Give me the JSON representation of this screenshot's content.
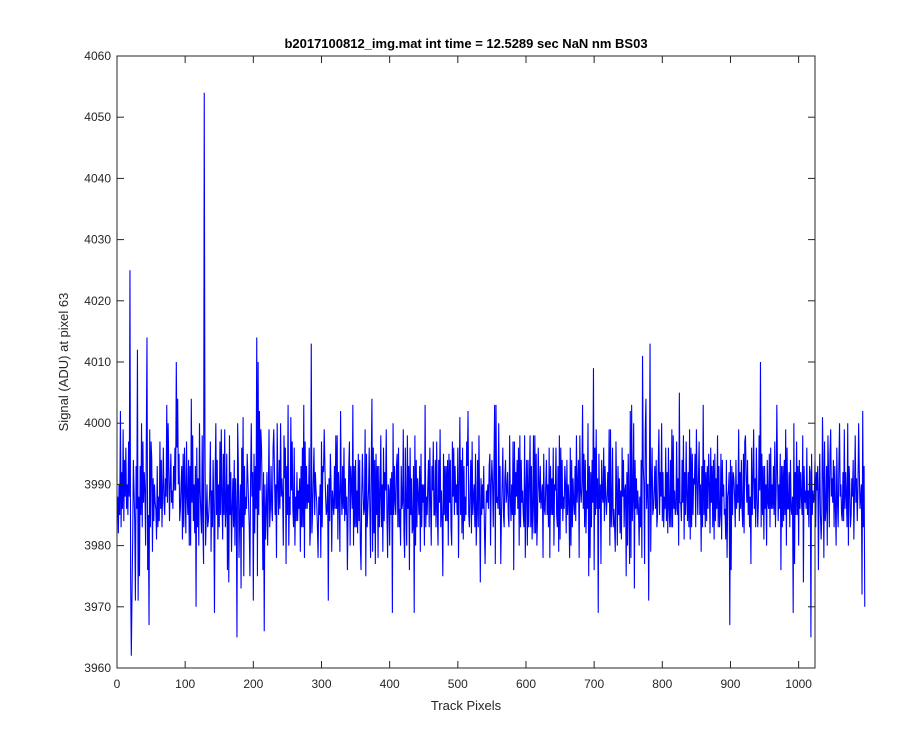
{
  "figure": {
    "background": "#ffffff"
  },
  "chart_data": {
    "type": "line",
    "title": "b2017100812_img.mat int time = 12.5289 sec  NaN nm BS03",
    "xlabel": "Track Pixels",
    "ylabel": "Signal (ADU) at pixel 63",
    "xlim": [
      0,
      1024
    ],
    "ylim": [
      3960,
      4060
    ],
    "xticks": [
      0,
      100,
      200,
      300,
      400,
      500,
      600,
      700,
      800,
      900,
      1000
    ],
    "yticks": [
      3960,
      3970,
      3980,
      3990,
      4000,
      4010,
      4020,
      4030,
      4040,
      4050,
      4060
    ],
    "xtick_labels": [
      "0",
      "100",
      "200",
      "300",
      "400",
      "500",
      "600",
      "700",
      "800",
      "900",
      "1000"
    ],
    "ytick_labels": [
      "3960",
      "3970",
      "3980",
      "3990",
      "4000",
      "4010",
      "4020",
      "4030",
      "4040",
      "4050",
      "4060"
    ],
    "grid": false,
    "box": true,
    "series": [
      {
        "color": "#0000ff",
        "x_start": 1,
        "x_step": 1,
        "values": [
          3988,
          3982,
          3990,
          3985,
          4002,
          3983,
          3992,
          3986,
          3999,
          3984,
          3994,
          3988,
          3996,
          3986,
          3990,
          3985,
          3997,
          3988,
          4025,
          3975,
          3962,
          3972,
          3981,
          3994,
          3989,
          3984,
          3971,
          3993,
          3986,
          4012,
          3971,
          3988,
          3975,
          3993,
          3985,
          4000,
          3983,
          3997,
          3987,
          3992,
          3989,
          3980,
          3997,
          4014,
          3976,
          3985,
          3967,
          3999,
          3983,
          3997,
          3994,
          3979,
          3991,
          3984,
          3990,
          3987,
          3986,
          3981,
          3993,
          3983,
          3988,
          3984,
          3997,
          3986,
          3994,
          3983,
          3989,
          3996,
          3987,
          3985,
          3991,
          3988,
          4003,
          3987,
          4000,
          3993,
          3984,
          3990,
          3995,
          3987,
          3989,
          3986,
          3993,
          3989,
          3996,
          3989,
          4010,
          3996,
          4004,
          3990,
          3995,
          3984,
          3986,
          3990,
          3993,
          3981,
          3995,
          3983,
          3996,
          3989,
          3982,
          3997,
          3988,
          3985,
          3994,
          3980,
          3993,
          3980,
          4004,
          3987,
          3998,
          3984,
          3990,
          3982,
          3993,
          3970,
          3996,
          3983,
          3991,
          3980,
          4000,
          3989,
          3985,
          3982,
          3998,
          3983,
          3977,
          4054,
          3998,
          3980,
          3985,
          3990,
          3983,
          3984,
          3986,
          3989,
          3997,
          3979,
          3989,
          3983,
          3994,
          3986,
          3969,
          3992,
          4000,
          3985,
          3994,
          3981,
          3990,
          3983,
          3997,
          3985,
          3999,
          3988,
          3981,
          3995,
          3985,
          3999,
          3983,
          3986,
          3995,
          3976,
          3990,
          3974,
          3998,
          3985,
          3992,
          3979,
          3986,
          3991,
          3983,
          3994,
          3980,
          3991,
          3986,
          3965,
          4000,
          3993,
          3978,
          3985,
          3990,
          3973,
          3996,
          3983,
          4001,
          3975,
          3993,
          3985,
          3988,
          3986,
          3995,
          3991,
          3987,
          3983,
          3975,
          3991,
          4000,
          3988,
          3992,
          3971,
          3995,
          3982,
          3993,
          3986,
          4014,
          3975,
          4010,
          3985,
          4002,
          3989,
          3999,
          3996,
          3988,
          3976,
          3992,
          3966,
          3990,
          3981,
          3986,
          3992,
          3980,
          3988,
          3999,
          3983,
          3986,
          3993,
          3986,
          3984,
          3996,
          3999,
          3992,
          3985,
          3990,
          3978,
          4000,
          3990,
          3985,
          3994,
          3986,
          4000,
          3988,
          3991,
          3988,
          3980,
          3998,
          3991,
          3996,
          3977,
          3993,
          3985,
          4003,
          3980,
          3988,
          3985,
          4001,
          3989,
          3997,
          3986,
          3983,
          3996,
          3980,
          3988,
          3984,
          3992,
          3984,
          3989,
          3986,
          3991,
          3979,
          3993,
          3983,
          3996,
          3983,
          4003,
          3978,
          3997,
          3986,
          3993,
          3986,
          3990,
          3987,
          3996,
          3980,
          3983,
          4013,
          3982,
          3986,
          3991,
          3996,
          3985,
          3992,
          3989,
          3987,
          3983,
          3978,
          3988,
          3985,
          3990,
          3978,
          3997,
          3983,
          3993,
          3992,
          3999,
          3993,
          3988,
          3985,
          3986,
          3990,
          3971,
          3991,
          3984,
          3995,
          3990,
          3979,
          3989,
          3987,
          3985,
          3993,
          3986,
          3998,
          3986,
          3998,
          3981,
          3992,
          3988,
          3979,
          4002,
          3989,
          3985,
          3993,
          3986,
          3996,
          3984,
          3991,
          3985,
          3988,
          3976,
          3985,
          3993,
          3997,
          3980,
          3993,
          3990,
          3986,
          4003,
          3980,
          3993,
          3983,
          3994,
          3983,
          3989,
          3982,
          3995,
          3984,
          3994,
          3980,
          3976,
          3988,
          3995,
          3989,
          3985,
          3986,
          3999,
          3975,
          3995,
          3983,
          3986,
          3989,
          3996,
          3985,
          3978,
          3993,
          4004,
          3979,
          3996,
          3982,
          3994,
          3977,
          3995,
          3985,
          3993,
          3978,
          3993,
          3983,
          3988,
          3998,
          3983,
          3990,
          3979,
          3996,
          3984,
          3992,
          3989,
          3999,
          3985,
          3978,
          3990,
          3989,
          3980,
          3991,
          3985,
          3992,
          3969,
          4000,
          3985,
          3993,
          3987,
          3985,
          3993,
          3995,
          3983,
          3996,
          3983,
          3986,
          3980,
          3993,
          3986,
          3987,
          3999,
          3982,
          3978,
          3996,
          3987,
          3980,
          3998,
          3986,
          3993,
          3976,
          3996,
          3985,
          3991,
          3982,
          3983,
          3993,
          3969,
          3998,
          3980,
          3994,
          3983,
          3991,
          3988,
          3985,
          3993,
          3979,
          3995,
          3983,
          3990,
          3987,
          3990,
          3980,
          4003,
          3983,
          3988,
          3985,
          3990,
          3994,
          3983,
          3996,
          3987,
          3980,
          3993,
          3989,
          3997,
          3985,
          3985,
          3994,
          3983,
          3997,
          3985,
          3980,
          3994,
          3987,
          3999,
          3983,
          3989,
          3984,
          3975,
          3995,
          3985,
          3993,
          3984,
          3993,
          3984,
          3994,
          3980,
          3995,
          3987,
          3994,
          3983,
          3980,
          3997,
          3988,
          3996,
          3985,
          3993,
          3987,
          3990,
          3985,
          3996,
          3978,
          3990,
          4001,
          3985,
          3994,
          3982,
          3996,
          3981,
          3993,
          3984,
          3988,
          3985,
          3997,
          3993,
          4002,
          3985,
          3983,
          3989,
          3994,
          3982,
          3997,
          3985,
          3988,
          3990,
          3983,
          3995,
          3980,
          3985,
          3994,
          3983,
          3998,
          3987,
          3974,
          3991,
          3985,
          3990,
          3986,
          3993,
          3983,
          3977,
          3985,
          3989,
          3987,
          3990,
          3986,
          3993,
          3995,
          3980,
          3990,
          3994,
          3990,
          3983,
          3993,
          4003,
          3977,
          4003,
          3987,
          3988,
          3986,
          4000,
          3985,
          3993,
          3977,
          3985,
          3990,
          3996,
          3985,
          3983,
          3991,
          3994,
          3987,
          3989,
          3992,
          3985,
          3983,
          3998,
          3988,
          3984,
          3990,
          3985,
          3997,
          3976,
          3997,
          3985,
          3992,
          3988,
          3994,
          3986,
          3996,
          3980,
          3998,
          3983,
          3994,
          3987,
          3989,
          3985,
          3983,
          3998,
          3978,
          3989,
          3994,
          3980,
          3994,
          3983,
          3990,
          3998,
          3983,
          3993,
          3981,
          3986,
          3998,
          3982,
          3998,
          3982,
          3995,
          3980,
          3985,
          3996,
          3990,
          3987,
          3993,
          3986,
          3988,
          3990,
          3978,
          3995,
          3986,
          3985,
          3990,
          3994,
          3985,
          3990,
          3983,
          3996,
          3978,
          3993,
          3985,
          3991,
          3985,
          3996,
          3980,
          3990,
          3989,
          3996,
          3985,
          3983,
          3993,
          3979,
          3998,
          3981,
          3996,
          3986,
          3994,
          3984,
          3988,
          3986,
          3993,
          3990,
          3982,
          3994,
          3985,
          3990,
          3987,
          3978,
          3996,
          3980,
          3994,
          3983,
          3991,
          3987,
          3985,
          3993,
          3984,
          3998,
          3987,
          3990,
          3994,
          3978,
          3998,
          3989,
          3987,
          3990,
          4003,
          3986,
          3995,
          3983,
          3994,
          3982,
          3989,
          3986,
          4000,
          3975,
          3993,
          3978,
          3992,
          3983,
          3994,
          3987,
          4009,
          3976,
          3996,
          3985,
          3999,
          3986,
          3991,
          3969,
          3995,
          3986,
          3990,
          3977,
          3994,
          3988,
          3987,
          3996,
          3984,
          3993,
          3988,
          3985,
          3988,
          3992,
          3987,
          3999,
          3980,
          3999,
          3983,
          3986,
          3996,
          3983,
          3986,
          3983,
          3979,
          3997,
          3989,
          3980,
          3993,
          3985,
          3991,
          3982,
          3989,
          3981,
          3996,
          3988,
          3994,
          3983,
          3989,
          3990,
          3975,
          3992,
          3980,
          3995,
          3988,
          3977,
          4002,
          3978,
          4003,
          3984,
          3988,
          4000,
          3973,
          3994,
          3986,
          3991,
          3985,
          3989,
          3986,
          3980,
          3988,
          3983,
          3994,
          3978,
          4011,
          3993,
          3990,
          3977,
          3999,
          4004,
          3986,
          3990,
          3990,
          3971,
          3989,
          4013,
          3979,
          3990,
          3996,
          3985,
          3986,
          3989,
          3993,
          3986,
          3994,
          3983,
          3985,
          3993,
          3999,
          3985,
          3992,
          3988,
          4000,
          3984,
          3992,
          3983,
          3988,
          3986,
          3996,
          3984,
          3992,
          3982,
          3996,
          3986,
          3983,
          3994,
          3983,
          3999,
          3983,
          3998,
          3986,
          3989,
          3985,
          3986,
          3997,
          3985,
          3991,
          3980,
          4005,
          3987,
          3987,
          3984,
          3994,
          3987,
          3998,
          3981,
          3992,
          3985,
          3997,
          3988,
          3984,
          3992,
          3983,
          3999,
          3981,
          3996,
          3983,
          3995,
          3985,
          3991,
          3990,
          3995,
          3983,
          3999,
          3991,
          3985,
          3991,
          3997,
          3985,
          3990,
          3979,
          3993,
          3983,
          4003,
          3985,
          3994,
          3983,
          3992,
          3984,
          3993,
          3986,
          3995,
          3990,
          3982,
          3996,
          3987,
          3993,
          3983,
          3994,
          3981,
          3995,
          3984,
          3991,
          3986,
          3998,
          3983,
          3993,
          3983,
          3985,
          3995,
          3981,
          3994,
          3988,
          3990,
          3985,
          3986,
          3981,
          3994,
          3978,
          3988,
          3989,
          3992,
          3967,
          3994,
          3976,
          3993,
          3985,
          3992,
          3991,
          3988,
          3983,
          3994,
          3986,
          3990,
          3987,
          3999,
          3984,
          3992,
          3986,
          3994,
          3986,
          3983,
          3995,
          3982,
          3997,
          3998,
          3991,
          3987,
          3994,
          3985,
          3990,
          3983,
          3988,
          3977,
          3996,
          3985,
          3991,
          3999,
          3986,
          3991,
          3983,
          3996,
          3988,
          3983,
          3987,
          3998,
          3989,
          4010,
          3983,
          3995,
          3985,
          3993,
          3981,
          3993,
          3986,
          3990,
          3980,
          3994,
          3987,
          3986,
          3995,
          3983,
          3996,
          3986,
          3990,
          3986,
          3993,
          3985,
          3997,
          3983,
          3989,
          4003,
          3992,
          3984,
          3990,
          3986,
          3995,
          3976,
          3993,
          3983,
          3993,
          3984,
          3994,
          3985,
          3999,
          3980,
          3996,
          3986,
          3986,
          3992,
          3983,
          3994,
          3986,
          3985,
          3988,
          3969,
          4000,
          3977,
          3992,
          3985,
          3997,
          3985,
          3993,
          3980,
          3994,
          3986,
          3992,
          3988,
          3985,
          3998,
          3974,
          3993,
          3987,
          3989,
          3986,
          3996,
          3985,
          3989,
          3983,
          3993,
          3992,
          3965,
          3995,
          3985,
          3989,
          3987,
          3988,
          3994,
          3983,
          3992,
          3989,
          3993,
          3976,
          3989,
          3995,
          3985,
          3981,
          3985,
          4001,
          3992,
          3978,
          3997,
          3984,
          3986,
          3993,
          3980,
          3998,
          3991,
          3983,
          3995,
          3999,
          3988,
          3991,
          3987,
          3994,
          3983,
          3993,
          3986,
          3980,
          3996,
          3987,
          3983,
          3993,
          4000,
          3988,
          3990,
          3985,
          3984,
          3992,
          3984,
          3999,
          3986,
          3992,
          3988,
          3983,
          4000,
          3980,
          3993,
          3990,
          3983,
          3985,
          3991,
          3988,
          3994,
          3981,
          3989,
          3998,
          3987,
          3991,
          3984,
          3989,
          4000,
          3992,
          3986,
          3988,
          3990,
          3972,
          4002,
          3983,
          3993,
          3970
        ]
      }
    ]
  }
}
